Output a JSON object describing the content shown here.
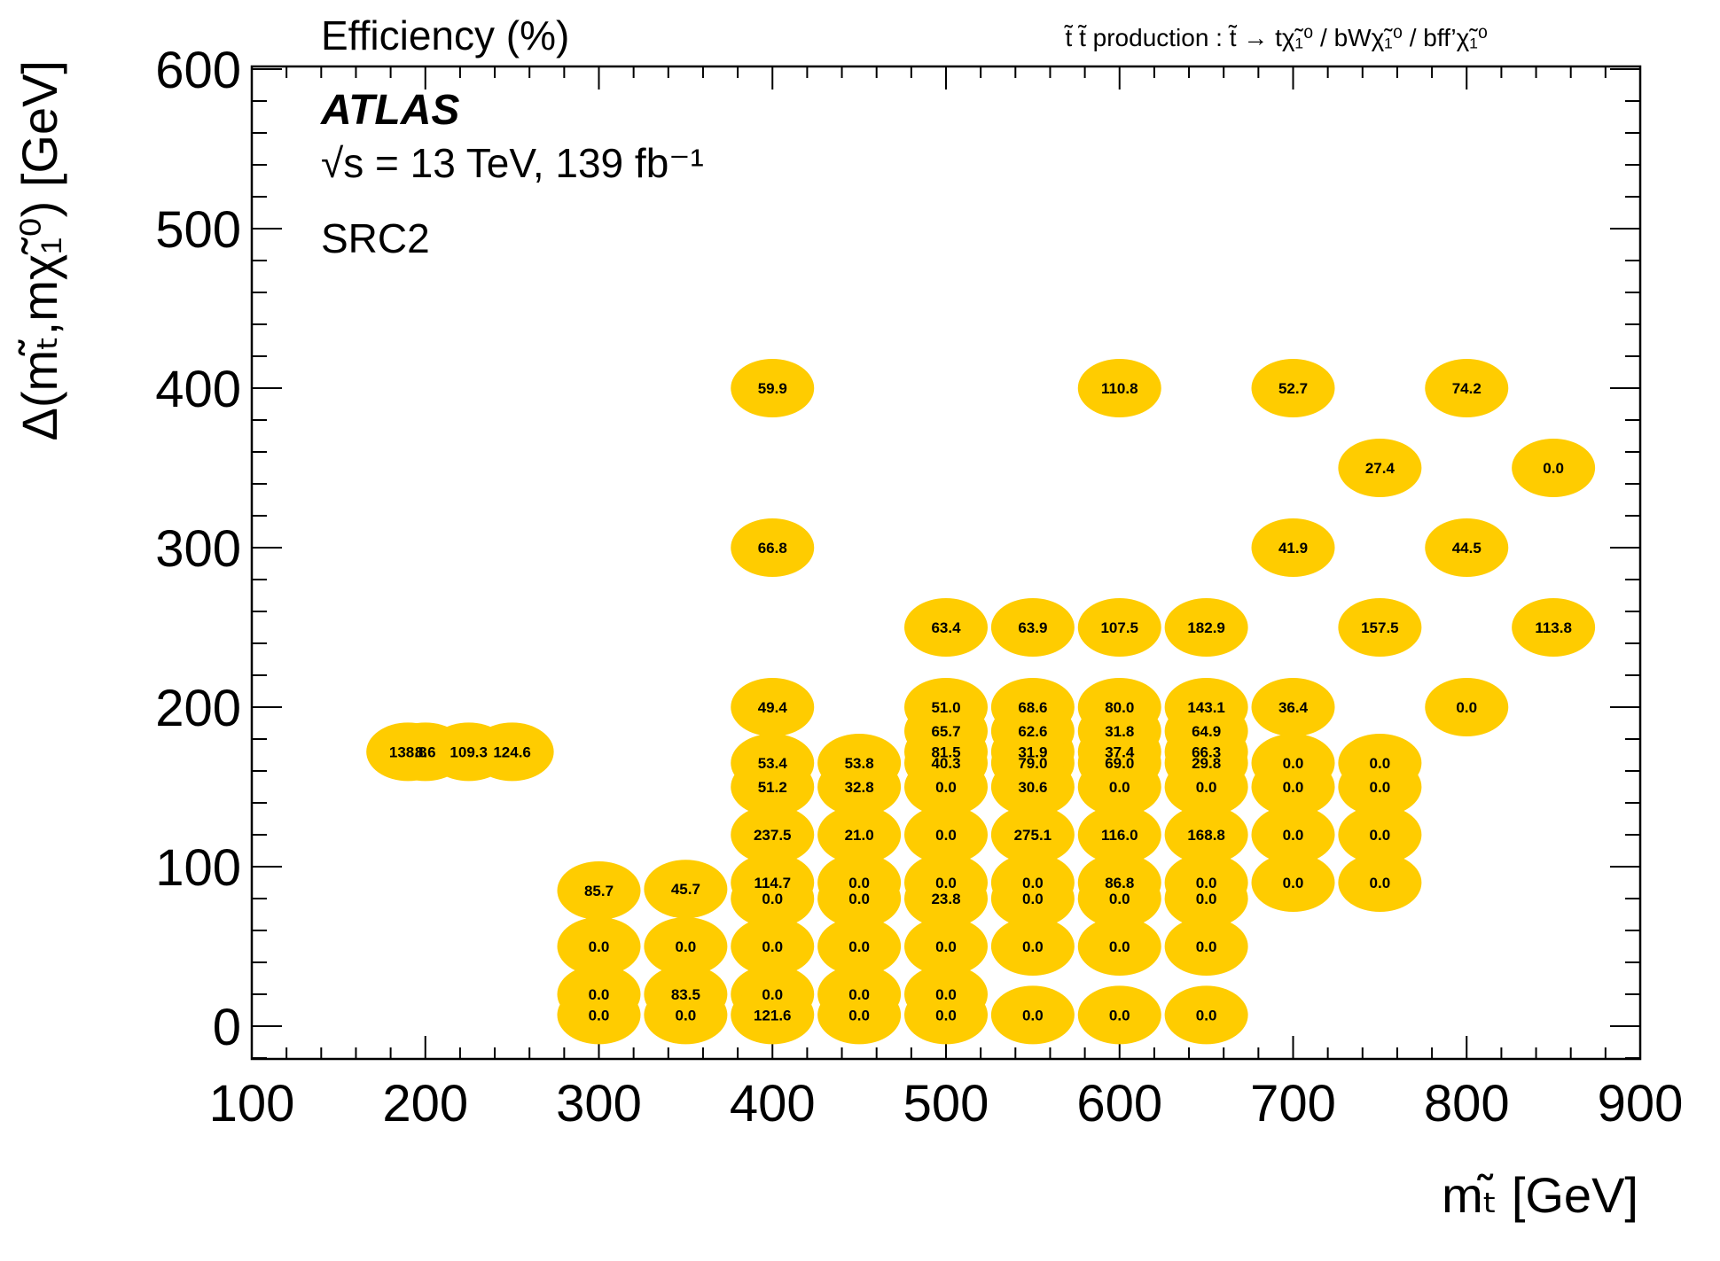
{
  "header": {
    "left_title": "Efficiency (%)",
    "right_title": "t̃ t̃ production : t̃ → tχ̃₁⁰ / bWχ̃₁⁰ / bff’χ̃₁⁰"
  },
  "labels": {
    "experiment": "ATLAS",
    "energy_lumi": "√s = 13 TeV, 139 fb⁻¹",
    "signal_region": "SRC2"
  },
  "colors": {
    "marker": "#FFCC00",
    "text": "#000000"
  },
  "chart_data": {
    "type": "scatter",
    "title": "Efficiency (%)",
    "xlabel": "mₜ̃ [GeV]",
    "ylabel": "Δ(mₜ̃,mχ̃₁⁰) [GeV]",
    "xlim": [
      100,
      900
    ],
    "ylim": [
      -20,
      620
    ],
    "x_ticks": [
      "100",
      "200",
      "300",
      "400",
      "500",
      "600",
      "700",
      "800",
      "900"
    ],
    "y_ticks": [
      "0",
      "100",
      "200",
      "300",
      "400",
      "500",
      "600"
    ],
    "grid": false,
    "points": [
      {
        "x": 190,
        "y": 172,
        "label": "138.8"
      },
      {
        "x": 200,
        "y": 172,
        "label": "8.6"
      },
      {
        "x": 225,
        "y": 172,
        "label": "109.3"
      },
      {
        "x": 250,
        "y": 172,
        "label": "124.6"
      },
      {
        "x": 300,
        "y": 85,
        "label": "85.7"
      },
      {
        "x": 300,
        "y": 50,
        "label": "0.0"
      },
      {
        "x": 300,
        "y": 20,
        "label": "0.0"
      },
      {
        "x": 300,
        "y": 7,
        "label": "0.0"
      },
      {
        "x": 350,
        "y": 86,
        "label": "45.7"
      },
      {
        "x": 350,
        "y": 50,
        "label": "0.0"
      },
      {
        "x": 350,
        "y": 20,
        "label": "83.5"
      },
      {
        "x": 350,
        "y": 7,
        "label": "0.0"
      },
      {
        "x": 400,
        "y": 400,
        "label": "59.9"
      },
      {
        "x": 400,
        "y": 300,
        "label": "66.8"
      },
      {
        "x": 400,
        "y": 200,
        "label": "49.4"
      },
      {
        "x": 400,
        "y": 165,
        "label": "53.4"
      },
      {
        "x": 400,
        "y": 150,
        "label": "51.2"
      },
      {
        "x": 400,
        "y": 120,
        "label": "237.5"
      },
      {
        "x": 400,
        "y": 90,
        "label": "114.7"
      },
      {
        "x": 400,
        "y": 80,
        "label": "0.0"
      },
      {
        "x": 400,
        "y": 50,
        "label": "0.0"
      },
      {
        "x": 400,
        "y": 20,
        "label": "0.0"
      },
      {
        "x": 400,
        "y": 7,
        "label": "121.6"
      },
      {
        "x": 450,
        "y": 165,
        "label": "53.8"
      },
      {
        "x": 450,
        "y": 150,
        "label": "32.8"
      },
      {
        "x": 450,
        "y": 120,
        "label": "21.0"
      },
      {
        "x": 450,
        "y": 90,
        "label": "0.0"
      },
      {
        "x": 450,
        "y": 80,
        "label": "0.0"
      },
      {
        "x": 450,
        "y": 50,
        "label": "0.0"
      },
      {
        "x": 450,
        "y": 20,
        "label": "0.0"
      },
      {
        "x": 450,
        "y": 7,
        "label": "0.0"
      },
      {
        "x": 500,
        "y": 250,
        "label": "63.4"
      },
      {
        "x": 500,
        "y": 200,
        "label": "51.0"
      },
      {
        "x": 500,
        "y": 185,
        "label": "65.7"
      },
      {
        "x": 500,
        "y": 172,
        "label": "81.5"
      },
      {
        "x": 500,
        "y": 165,
        "label": "40.3"
      },
      {
        "x": 500,
        "y": 150,
        "label": "0.0"
      },
      {
        "x": 500,
        "y": 120,
        "label": "0.0"
      },
      {
        "x": 500,
        "y": 90,
        "label": "0.0"
      },
      {
        "x": 500,
        "y": 80,
        "label": "23.8"
      },
      {
        "x": 500,
        "y": 50,
        "label": "0.0"
      },
      {
        "x": 500,
        "y": 20,
        "label": "0.0"
      },
      {
        "x": 500,
        "y": 7,
        "label": "0.0"
      },
      {
        "x": 550,
        "y": 250,
        "label": "63.9"
      },
      {
        "x": 550,
        "y": 200,
        "label": "68.6"
      },
      {
        "x": 550,
        "y": 185,
        "label": "62.6"
      },
      {
        "x": 550,
        "y": 172,
        "label": "31.9"
      },
      {
        "x": 550,
        "y": 165,
        "label": "79.0"
      },
      {
        "x": 550,
        "y": 150,
        "label": "30.6"
      },
      {
        "x": 550,
        "y": 120,
        "label": "275.1"
      },
      {
        "x": 550,
        "y": 90,
        "label": "0.0"
      },
      {
        "x": 550,
        "y": 80,
        "label": "0.0"
      },
      {
        "x": 550,
        "y": 50,
        "label": "0.0"
      },
      {
        "x": 550,
        "y": 7,
        "label": "0.0"
      },
      {
        "x": 600,
        "y": 400,
        "label": "110.8"
      },
      {
        "x": 600,
        "y": 250,
        "label": "107.5"
      },
      {
        "x": 600,
        "y": 200,
        "label": "80.0"
      },
      {
        "x": 600,
        "y": 185,
        "label": "31.8"
      },
      {
        "x": 600,
        "y": 172,
        "label": "37.4"
      },
      {
        "x": 600,
        "y": 165,
        "label": "69.0"
      },
      {
        "x": 600,
        "y": 150,
        "label": "0.0"
      },
      {
        "x": 600,
        "y": 120,
        "label": "116.0"
      },
      {
        "x": 600,
        "y": 90,
        "label": "86.8"
      },
      {
        "x": 600,
        "y": 80,
        "label": "0.0"
      },
      {
        "x": 600,
        "y": 50,
        "label": "0.0"
      },
      {
        "x": 600,
        "y": 7,
        "label": "0.0"
      },
      {
        "x": 650,
        "y": 250,
        "label": "182.9"
      },
      {
        "x": 650,
        "y": 200,
        "label": "143.1"
      },
      {
        "x": 650,
        "y": 185,
        "label": "64.9"
      },
      {
        "x": 650,
        "y": 172,
        "label": "66.3"
      },
      {
        "x": 650,
        "y": 165,
        "label": "29.8"
      },
      {
        "x": 650,
        "y": 150,
        "label": "0.0"
      },
      {
        "x": 650,
        "y": 120,
        "label": "168.8"
      },
      {
        "x": 650,
        "y": 90,
        "label": "0.0"
      },
      {
        "x": 650,
        "y": 80,
        "label": "0.0"
      },
      {
        "x": 650,
        "y": 50,
        "label": "0.0"
      },
      {
        "x": 650,
        "y": 7,
        "label": "0.0"
      },
      {
        "x": 700,
        "y": 400,
        "label": "52.7"
      },
      {
        "x": 700,
        "y": 300,
        "label": "41.9"
      },
      {
        "x": 700,
        "y": 200,
        "label": "36.4"
      },
      {
        "x": 700,
        "y": 165,
        "label": "0.0"
      },
      {
        "x": 700,
        "y": 150,
        "label": "0.0"
      },
      {
        "x": 700,
        "y": 120,
        "label": "0.0"
      },
      {
        "x": 700,
        "y": 90,
        "label": "0.0"
      },
      {
        "x": 750,
        "y": 350,
        "label": "27.4"
      },
      {
        "x": 750,
        "y": 250,
        "label": "157.5"
      },
      {
        "x": 750,
        "y": 165,
        "label": "0.0"
      },
      {
        "x": 750,
        "y": 150,
        "label": "0.0"
      },
      {
        "x": 750,
        "y": 120,
        "label": "0.0"
      },
      {
        "x": 750,
        "y": 90,
        "label": "0.0"
      },
      {
        "x": 800,
        "y": 400,
        "label": "74.2"
      },
      {
        "x": 800,
        "y": 300,
        "label": "44.5"
      },
      {
        "x": 800,
        "y": 200,
        "label": "0.0"
      },
      {
        "x": 850,
        "y": 350,
        "label": "0.0"
      },
      {
        "x": 850,
        "y": 250,
        "label": "113.8"
      }
    ]
  }
}
